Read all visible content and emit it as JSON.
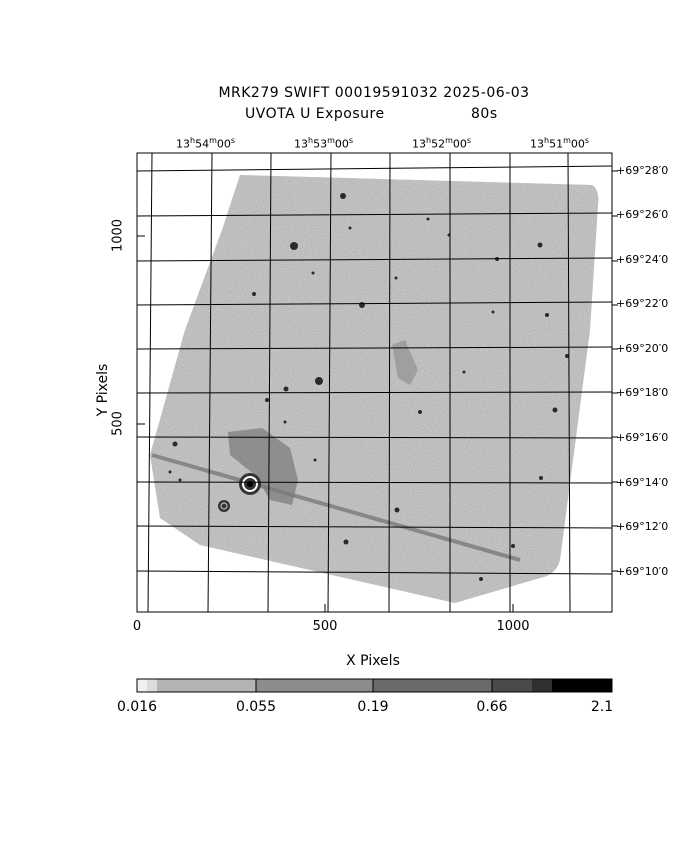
{
  "header": {
    "title_line1": "MRK279 SWIFT 00019591032 2025-06-03",
    "title_line2_left": "UVOTA U Exposure",
    "title_line2_right": "80s"
  },
  "axes": {
    "xlabel": "X Pixels",
    "ylabel": "Y Pixels",
    "x_ticks": [
      "0",
      "500",
      "1000"
    ],
    "y_ticks": [
      "500",
      "1000"
    ],
    "ra_ticks": [
      {
        "h": "13",
        "m": "54",
        "s": "00"
      },
      {
        "h": "13",
        "m": "53",
        "s": "00"
      },
      {
        "h": "13",
        "m": "52",
        "s": "00"
      },
      {
        "h": "13",
        "m": "51",
        "s": "00"
      }
    ],
    "dec_ticks": [
      "+69°28′0",
      "+69°26′0",
      "+69°24′0",
      "+69°22′0",
      "+69°20′0",
      "+69°18′0",
      "+69°16′0",
      "+69°14′0",
      "+69°12′0",
      "+69°10′0"
    ]
  },
  "colorbar": {
    "ticks": [
      "0.016",
      "0.055",
      "0.19",
      "0.66",
      "2.1"
    ]
  },
  "colors": {
    "background": "#ffffff",
    "field": "#9a9a9a",
    "grid": "#000000"
  }
}
